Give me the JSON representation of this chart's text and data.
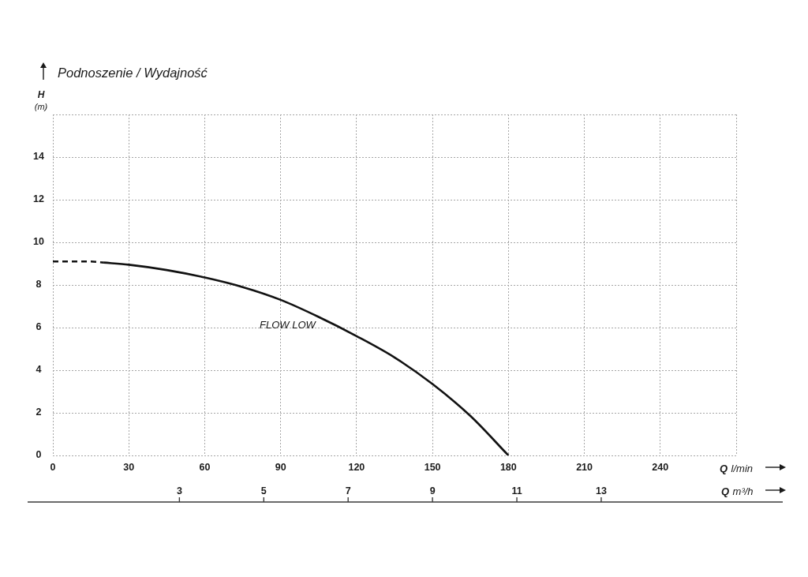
{
  "chart_data": {
    "type": "line",
    "title": "Podnoszenie / Wydajność",
    "xlabel": "Q l/min",
    "ylabel": "H (m)",
    "x2label": "Q m³/h",
    "xlim": [
      0,
      270
    ],
    "xticks": [
      0,
      30,
      60,
      90,
      120,
      150,
      180,
      210,
      240,
      {
        "value": 270,
        "label": null
      }
    ],
    "ylim": [
      0,
      16
    ],
    "yticks": [
      0,
      2,
      4,
      6,
      8,
      10,
      12,
      14,
      {
        "value": 16,
        "label": null
      }
    ],
    "x2lim": [
      0,
      16.2
    ],
    "x2ticks": [
      3,
      5,
      7,
      9,
      11,
      13
    ],
    "grid": true,
    "legend": false,
    "marker": "none",
    "series": [
      {
        "color": "#111111",
        "line_style": "dashed",
        "x": [
          0,
          5,
          10,
          15,
          20
        ],
        "values": [
          9.1,
          9.1,
          9.1,
          9.1,
          9.05
        ]
      },
      {
        "name": "FLOW LOW",
        "color": "#111111",
        "line_style": "solid",
        "x": [
          20,
          30,
          45,
          60,
          75,
          90,
          105,
          120,
          135,
          150,
          165,
          180
        ],
        "values": [
          9.05,
          8.95,
          8.7,
          8.35,
          7.9,
          7.3,
          6.5,
          5.6,
          4.6,
          3.35,
          1.85,
          0
        ]
      }
    ]
  }
}
